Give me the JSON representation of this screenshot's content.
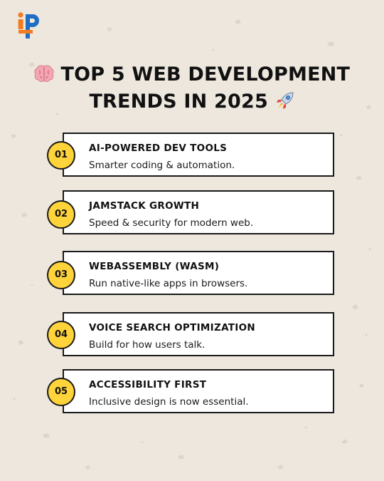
{
  "colors": {
    "background": "#ede7de",
    "badge": "#ffd33a",
    "border": "#1a1a1a",
    "logo_orange": "#f47c20",
    "logo_blue": "#1f6fc4"
  },
  "logo": {
    "icon": "ip-brand-logo"
  },
  "header": {
    "title_line1": "TOP 5 WEB DEVELOPMENT",
    "title_line2": "TRENDS IN 2025",
    "emoji_left": "brain-emoji",
    "emoji_right": "rocket-emoji"
  },
  "trends": [
    {
      "number": "01",
      "title": "AI-POWERED DEV TOOLS",
      "description": "Smarter coding & automation."
    },
    {
      "number": "02",
      "title": "JAMSTACK GROWTH",
      "description": "Speed & security for modern web."
    },
    {
      "number": "03",
      "title": "WEBASSEMBLY (WASM)",
      "description": "Run native-like apps in browsers."
    },
    {
      "number": "04",
      "title": "VOICE SEARCH OPTIMIZATION",
      "description": "Build for how users talk."
    },
    {
      "number": "05",
      "title": "ACCESSIBILITY FIRST",
      "description": "Inclusive design is now essential."
    }
  ]
}
